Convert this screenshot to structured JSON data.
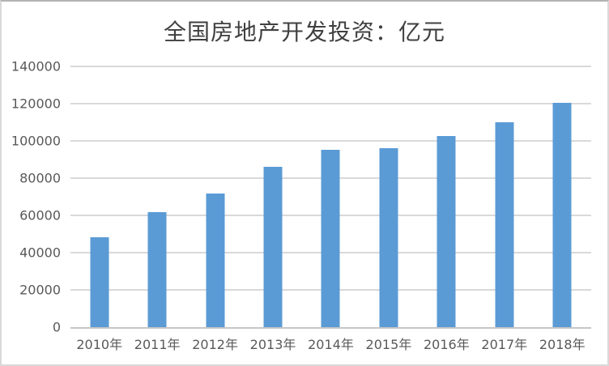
{
  "window": {
    "background": "#FFFFFF",
    "border_color": "#D9D9D9"
  },
  "chart_data": {
    "type": "bar",
    "title": "全国房地产开发投资：亿元",
    "xlabel": "",
    "ylabel": "",
    "categories": [
      "2010年",
      "2011年",
      "2012年",
      "2013年",
      "2014年",
      "2015年",
      "2016年",
      "2017年",
      "2018年"
    ],
    "values": [
      48267,
      61797,
      71804,
      86013,
      95036,
      95979,
      102581,
      109799,
      120264
    ],
    "ylim": [
      0,
      140000
    ],
    "yticks": [
      0,
      20000,
      40000,
      60000,
      80000,
      100000,
      120000,
      140000
    ],
    "ytick_labels": [
      "0",
      "20000",
      "40000",
      "60000",
      "80000",
      "100000",
      "120000",
      "140000"
    ],
    "grid": true,
    "legend_position": "none",
    "bar_color": "#5B9BD5",
    "gridline_color": "#D9D9D9",
    "axis_line_color": "#C6C6C6",
    "tick_label_color": "#595959",
    "title_color": "#404040"
  }
}
